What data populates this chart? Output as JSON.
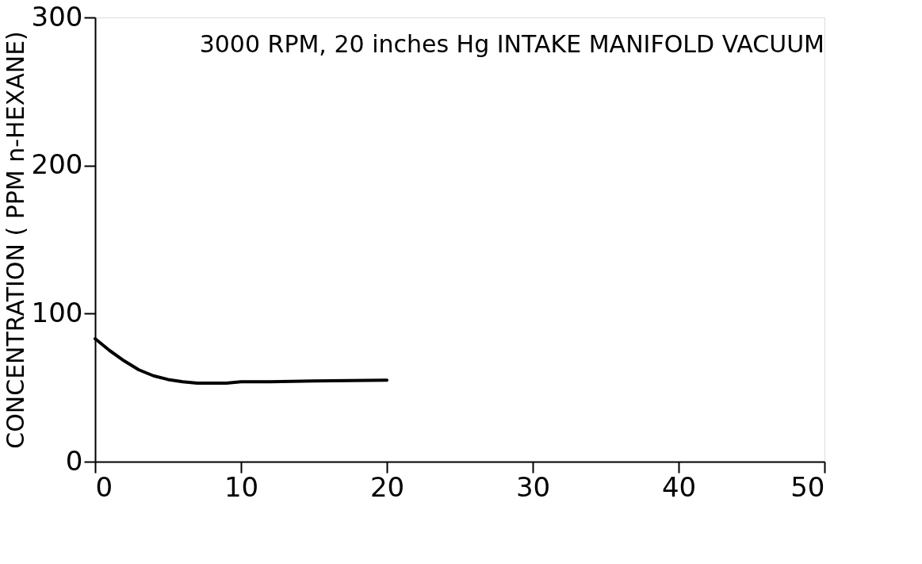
{
  "chart_data": {
    "type": "line",
    "ylabel": "CONCENTRATION ( PPM n-HEXANE)",
    "annotations": [
      "3000 RPM, 20 inches Hg INTAKE MANIFOLD VACUUM"
    ],
    "x": [
      0,
      1,
      2,
      3,
      4,
      5,
      6,
      7,
      8,
      9,
      10,
      12,
      15,
      20
    ],
    "series": [
      {
        "color": "#000000",
        "values": [
          83,
          75,
          68,
          62,
          58,
          55.5,
          54,
          53,
          53,
          53,
          54,
          54,
          54.5,
          55
        ]
      }
    ],
    "xlim": [
      0,
      50
    ],
    "xticks": [
      0,
      10,
      20,
      30,
      40,
      50
    ],
    "ylim": [
      0,
      300
    ],
    "yticks": [
      0,
      100,
      200,
      300
    ],
    "grid": false,
    "legend": false,
    "marker": "none",
    "line_style": "solid"
  }
}
